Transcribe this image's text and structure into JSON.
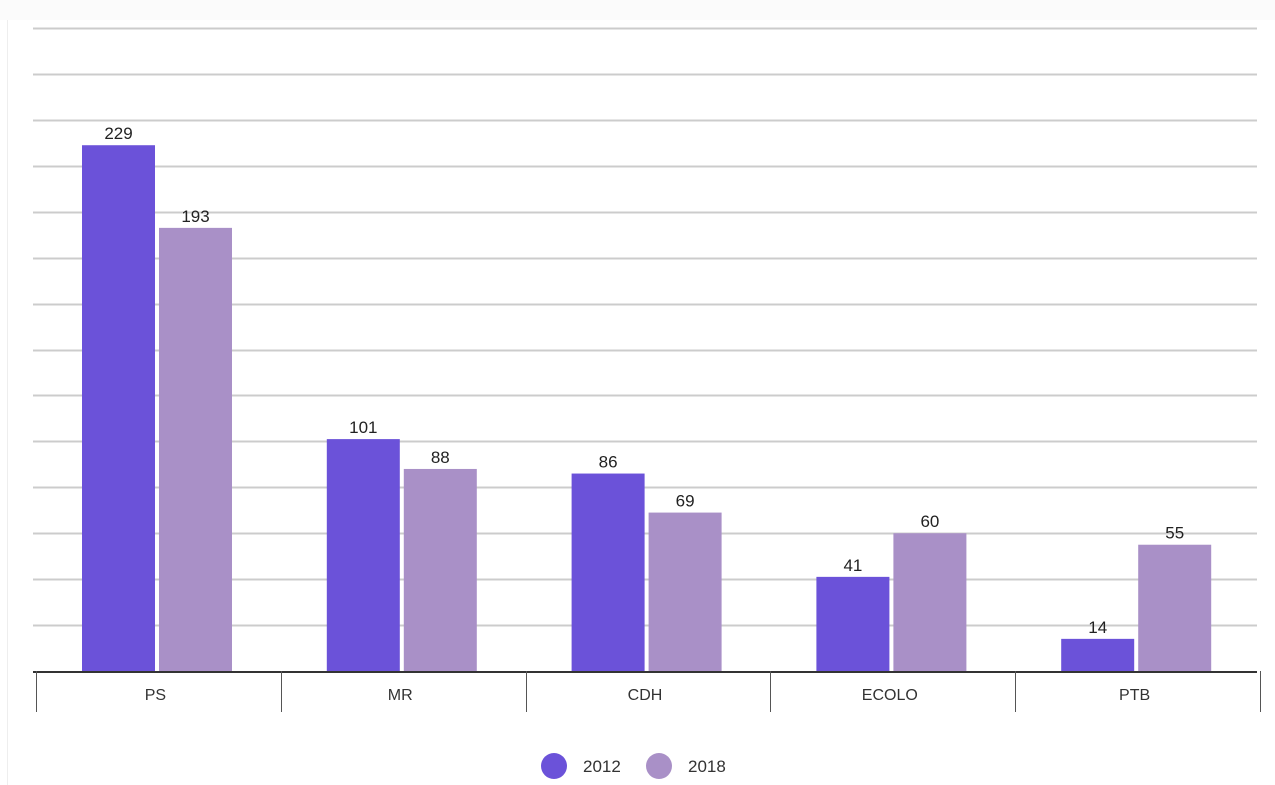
{
  "chart_data": {
    "type": "bar",
    "title": "",
    "xlabel": "",
    "ylabel": "",
    "categories": [
      "PS",
      "MR",
      "CDH",
      "ECOLO",
      "PTB"
    ],
    "series": [
      {
        "name": "2012",
        "color": "#6b52d9",
        "values": [
          229,
          101,
          86,
          41,
          14
        ]
      },
      {
        "name": "2018",
        "color": "#a990c7",
        "values": [
          193,
          88,
          69,
          60,
          55
        ]
      }
    ],
    "ylim": [
      0,
      280
    ],
    "y_grid_step": 20,
    "grid": true,
    "y_tick_labels_shown": false,
    "legend": "bottom-center",
    "gridline_color": "#cccccc",
    "axis_color": "#333333"
  }
}
